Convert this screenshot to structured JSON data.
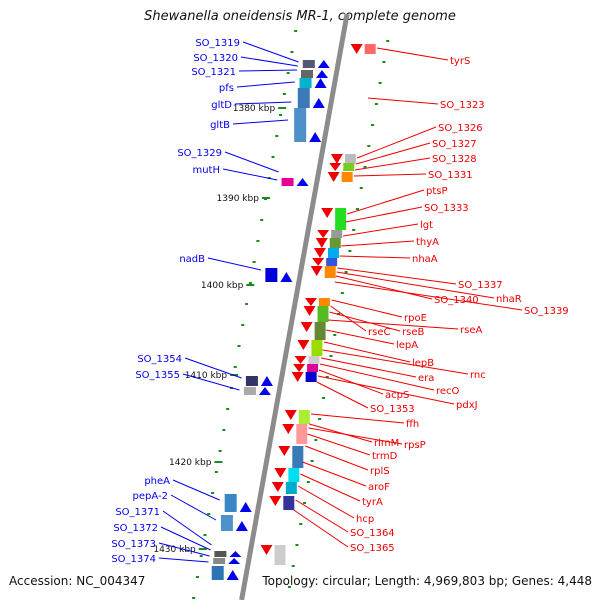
{
  "title": "Shewanella oneidensis MR-1, complete genome",
  "footer": {
    "accession": "Accession: NC_004347",
    "topology": "Topology: circular; Length: 4,969,803 bp; Genes: 4,448"
  },
  "colors": {
    "backbone": "#8c8c8c",
    "forward_strand": "#0000ee",
    "reverse_strand": "#ee0000",
    "tick": "#1a8a1a",
    "scale_label": "#111111"
  },
  "scale": {
    "unit": "kbp",
    "ticks": [
      "1380 kbp",
      "1390 kbp",
      "1400 kbp",
      "1410 kbp",
      "1420 kbp",
      "1430 kbp"
    ]
  },
  "forward_genes": [
    "SO_1319",
    "SO_1320",
    "SO_1321",
    "pfs",
    "gltD",
    "gltB",
    "SO_1329",
    "mutH",
    "nadB",
    "SO_1354",
    "SO_1355",
    "pheA",
    "pepA-2",
    "SO_1371",
    "SO_1372",
    "SO_1373",
    "SO_1374"
  ],
  "reverse_genes": [
    "tyrS",
    "SO_1323",
    "SO_1326",
    "SO_1327",
    "SO_1328",
    "SO_1331",
    "ptsP",
    "SO_1333",
    "lgt",
    "thyA",
    "nhaA",
    "SO_1337",
    "nhaR",
    "SO_1340",
    "SO_1339",
    "rpoE",
    "rseC",
    "rseB",
    "rseA",
    "lepA",
    "lepB",
    "rnc",
    "era",
    "recO",
    "acpS",
    "pdxJ",
    "SO_1353",
    "ffh",
    "rimM",
    "rpsP",
    "trmD",
    "rplS",
    "aroF",
    "tyrA",
    "hcp",
    "SO_1364",
    "SO_1365"
  ]
}
